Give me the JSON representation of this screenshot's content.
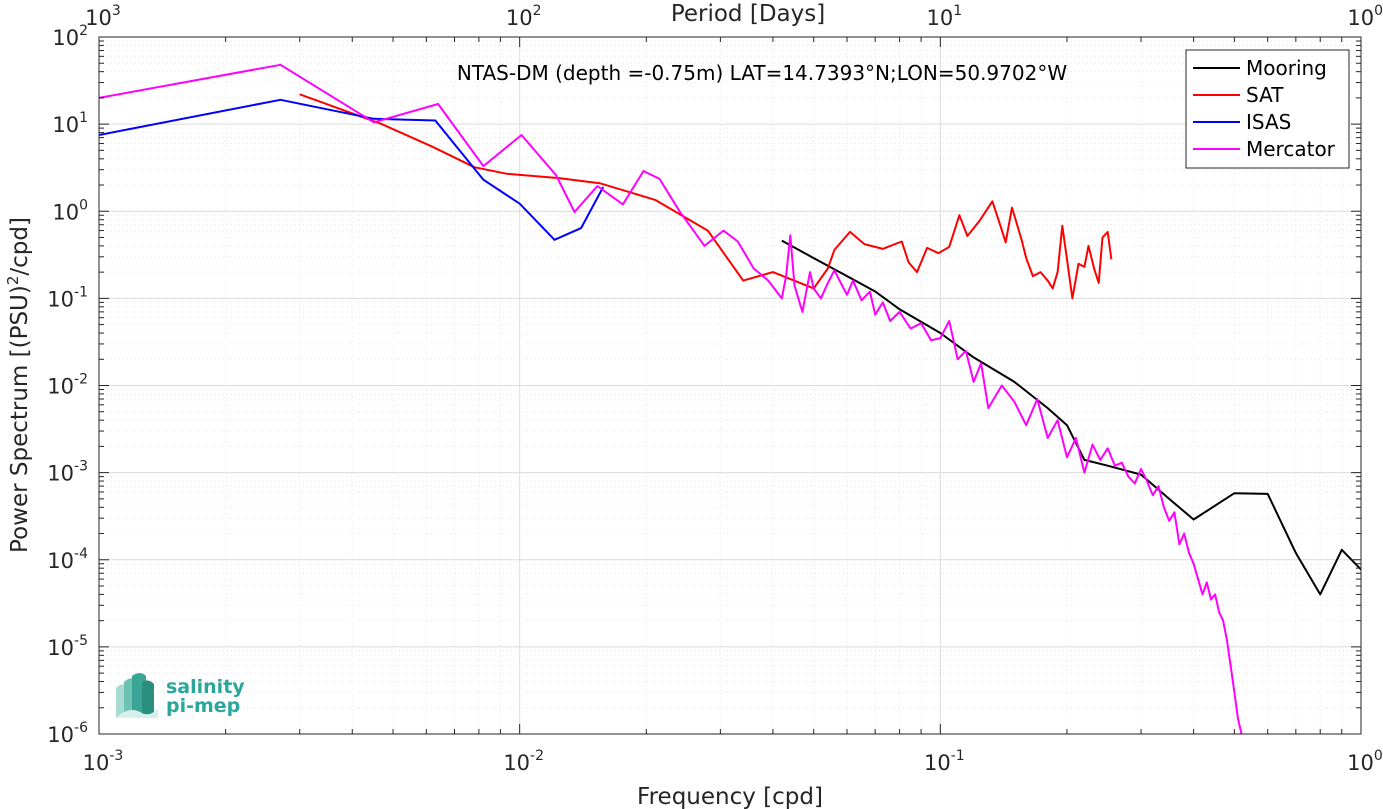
{
  "chart_data": {
    "type": "line",
    "title": "",
    "annotation": "NTAS-DM (depth =-0.75m) LAT=14.7393°N;LON=50.9702°W",
    "xlabel": "Frequency [cpd]",
    "ylabel": "Power Spectrum [(PSU)²/cpd]",
    "top_xlabel": "Period [Days]",
    "xscale": "log",
    "yscale": "log",
    "xlim": [
      0.001,
      1
    ],
    "ylim": [
      1e-06,
      100
    ],
    "grid": true,
    "legend_position": "top-right",
    "x_ticks": [
      {
        "base": "10",
        "exp": "-3"
      },
      {
        "base": "10",
        "exp": "-2"
      },
      {
        "base": "10",
        "exp": "-1"
      },
      {
        "base": "10",
        "exp": "0"
      }
    ],
    "top_ticks": [
      {
        "base": "10",
        "exp": "3"
      },
      {
        "base": "10",
        "exp": "2"
      },
      {
        "base": "10",
        "exp": "1"
      },
      {
        "base": "10",
        "exp": "0"
      }
    ],
    "y_ticks": [
      {
        "base": "10",
        "exp": "2"
      },
      {
        "base": "10",
        "exp": "1"
      },
      {
        "base": "10",
        "exp": "0"
      },
      {
        "base": "10",
        "exp": "-1"
      },
      {
        "base": "10",
        "exp": "-2"
      },
      {
        "base": "10",
        "exp": "-3"
      },
      {
        "base": "10",
        "exp": "-4"
      },
      {
        "base": "10",
        "exp": "-5"
      },
      {
        "base": "10",
        "exp": "-6"
      }
    ],
    "series": [
      {
        "name": "Mooring",
        "color": "#000000",
        "points": [
          [
            0.042,
            0.46
          ],
          [
            0.05,
            0.29
          ],
          [
            0.06,
            0.18
          ],
          [
            0.07,
            0.12
          ],
          [
            0.08,
            0.075
          ],
          [
            0.1,
            0.04
          ],
          [
            0.12,
            0.021
          ],
          [
            0.15,
            0.011
          ],
          [
            0.18,
            0.0055
          ],
          [
            0.2,
            0.0035
          ],
          [
            0.22,
            0.0014
          ],
          [
            0.25,
            0.0012
          ],
          [
            0.3,
            0.00095
          ],
          [
            0.35,
            0.0005
          ],
          [
            0.4,
            0.00029
          ],
          [
            0.5,
            0.00058
          ],
          [
            0.6,
            0.00057
          ],
          [
            0.7,
            0.00012
          ],
          [
            0.8,
            4e-05
          ],
          [
            0.9,
            0.00013
          ],
          [
            1.0,
            7.7e-05
          ]
        ]
      },
      {
        "name": "SAT",
        "color": "#ff0000",
        "points": [
          [
            0.003,
            22
          ],
          [
            0.0047,
            10
          ],
          [
            0.0062,
            5.5
          ],
          [
            0.0078,
            3.2
          ],
          [
            0.0093,
            2.7
          ],
          [
            0.0124,
            2.4
          ],
          [
            0.0155,
            2.1
          ],
          [
            0.021,
            1.35
          ],
          [
            0.028,
            0.6
          ],
          [
            0.034,
            0.16
          ],
          [
            0.04,
            0.2
          ],
          [
            0.05,
            0.13
          ],
          [
            0.054,
            0.22
          ],
          [
            0.056,
            0.36
          ],
          [
            0.061,
            0.58
          ],
          [
            0.066,
            0.42
          ],
          [
            0.073,
            0.37
          ],
          [
            0.081,
            0.45
          ],
          [
            0.084,
            0.26
          ],
          [
            0.088,
            0.2
          ],
          [
            0.093,
            0.38
          ],
          [
            0.099,
            0.33
          ],
          [
            0.105,
            0.39
          ],
          [
            0.111,
            0.9
          ],
          [
            0.116,
            0.52
          ],
          [
            0.124,
            0.78
          ],
          [
            0.133,
            1.3
          ],
          [
            0.138,
            0.75
          ],
          [
            0.143,
            0.44
          ],
          [
            0.148,
            1.1
          ],
          [
            0.156,
            0.47
          ],
          [
            0.16,
            0.29
          ],
          [
            0.166,
            0.18
          ],
          [
            0.173,
            0.2
          ],
          [
            0.18,
            0.16
          ],
          [
            0.185,
            0.13
          ],
          [
            0.19,
            0.2
          ],
          [
            0.195,
            0.68
          ],
          [
            0.2,
            0.28
          ],
          [
            0.206,
            0.1
          ],
          [
            0.213,
            0.25
          ],
          [
            0.22,
            0.23
          ],
          [
            0.225,
            0.4
          ],
          [
            0.232,
            0.22
          ],
          [
            0.238,
            0.15
          ],
          [
            0.243,
            0.5
          ],
          [
            0.25,
            0.58
          ],
          [
            0.255,
            0.28
          ]
        ]
      },
      {
        "name": "ISAS",
        "color": "#0000ff",
        "points": [
          [
            0.001,
            7.5
          ],
          [
            0.0027,
            19
          ],
          [
            0.0045,
            11.5
          ],
          [
            0.0063,
            11
          ],
          [
            0.0082,
            2.3
          ],
          [
            0.01,
            1.22
          ],
          [
            0.0121,
            0.47
          ],
          [
            0.014,
            0.64
          ],
          [
            0.0158,
            1.9
          ]
        ]
      },
      {
        "name": "Mercator",
        "color": "#ff00ff",
        "points": [
          [
            0.001,
            20
          ],
          [
            0.0027,
            48
          ],
          [
            0.0045,
            10.5
          ],
          [
            0.0064,
            17
          ],
          [
            0.0082,
            3.3
          ],
          [
            0.0101,
            7.5
          ],
          [
            0.0122,
            2.6
          ],
          [
            0.0135,
            0.98
          ],
          [
            0.0153,
            1.95
          ],
          [
            0.0176,
            1.2
          ],
          [
            0.0197,
            2.9
          ],
          [
            0.0215,
            2.35
          ],
          [
            0.024,
            1.0
          ],
          [
            0.0275,
            0.4
          ],
          [
            0.0305,
            0.6
          ],
          [
            0.033,
            0.45
          ],
          [
            0.036,
            0.22
          ],
          [
            0.039,
            0.16
          ],
          [
            0.042,
            0.1
          ],
          [
            0.043,
            0.18
          ],
          [
            0.044,
            0.53
          ],
          [
            0.045,
            0.14
          ],
          [
            0.047,
            0.07
          ],
          [
            0.049,
            0.2
          ],
          [
            0.05,
            0.13
          ],
          [
            0.052,
            0.1
          ],
          [
            0.054,
            0.15
          ],
          [
            0.056,
            0.21
          ],
          [
            0.058,
            0.15
          ],
          [
            0.06,
            0.11
          ],
          [
            0.062,
            0.16
          ],
          [
            0.065,
            0.095
          ],
          [
            0.068,
            0.12
          ],
          [
            0.07,
            0.065
          ],
          [
            0.073,
            0.09
          ],
          [
            0.076,
            0.055
          ],
          [
            0.08,
            0.07
          ],
          [
            0.085,
            0.045
          ],
          [
            0.09,
            0.052
          ],
          [
            0.095,
            0.033
          ],
          [
            0.1,
            0.035
          ],
          [
            0.105,
            0.055
          ],
          [
            0.11,
            0.02
          ],
          [
            0.115,
            0.025
          ],
          [
            0.12,
            0.011
          ],
          [
            0.125,
            0.018
          ],
          [
            0.13,
            0.0055
          ],
          [
            0.14,
            0.01
          ],
          [
            0.15,
            0.0065
          ],
          [
            0.16,
            0.0035
          ],
          [
            0.17,
            0.007
          ],
          [
            0.18,
            0.0025
          ],
          [
            0.19,
            0.004
          ],
          [
            0.2,
            0.0015
          ],
          [
            0.21,
            0.0025
          ],
          [
            0.22,
            0.001
          ],
          [
            0.23,
            0.0021
          ],
          [
            0.24,
            0.0014
          ],
          [
            0.25,
            0.0019
          ],
          [
            0.26,
            0.0012
          ],
          [
            0.27,
            0.0013
          ],
          [
            0.28,
            0.0009
          ],
          [
            0.29,
            0.00075
          ],
          [
            0.3,
            0.0011
          ],
          [
            0.31,
            0.0008
          ],
          [
            0.32,
            0.00055
          ],
          [
            0.33,
            0.0007
          ],
          [
            0.34,
            0.0004
          ],
          [
            0.35,
            0.00028
          ],
          [
            0.36,
            0.00035
          ],
          [
            0.37,
            0.00015
          ],
          [
            0.38,
            0.0002
          ],
          [
            0.39,
            0.00012
          ],
          [
            0.4,
            9e-05
          ],
          [
            0.41,
            6e-05
          ],
          [
            0.42,
            4e-05
          ],
          [
            0.43,
            5.5e-05
          ],
          [
            0.44,
            3.5e-05
          ],
          [
            0.45,
            4e-05
          ],
          [
            0.46,
            2.5e-05
          ],
          [
            0.47,
            2e-05
          ],
          [
            0.48,
            1.2e-05
          ],
          [
            0.49,
            6e-06
          ],
          [
            0.5,
            3e-06
          ],
          [
            0.51,
            1.5e-06
          ],
          [
            0.52,
            1e-06
          ]
        ]
      }
    ]
  },
  "logo": {
    "line1": "salinity",
    "line2": "pi-mep"
  }
}
